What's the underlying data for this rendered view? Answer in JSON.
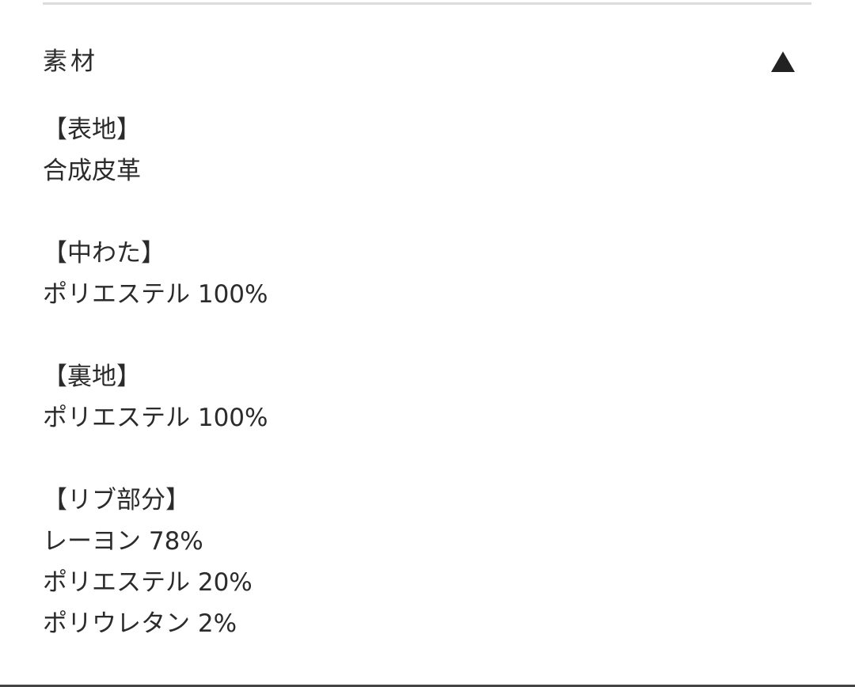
{
  "section": {
    "title": "素材",
    "toggle_icon": "triangle-up-icon",
    "lines": [
      "【表地】",
      "合成皮革",
      "",
      "【中わた】",
      "ポリエステル 100%",
      "",
      "【裏地】",
      "ポリエステル 100%",
      "",
      "【リブ部分】",
      "レーヨン 78%",
      "ポリエステル 20%",
      "ポリウレタン 2%"
    ]
  }
}
